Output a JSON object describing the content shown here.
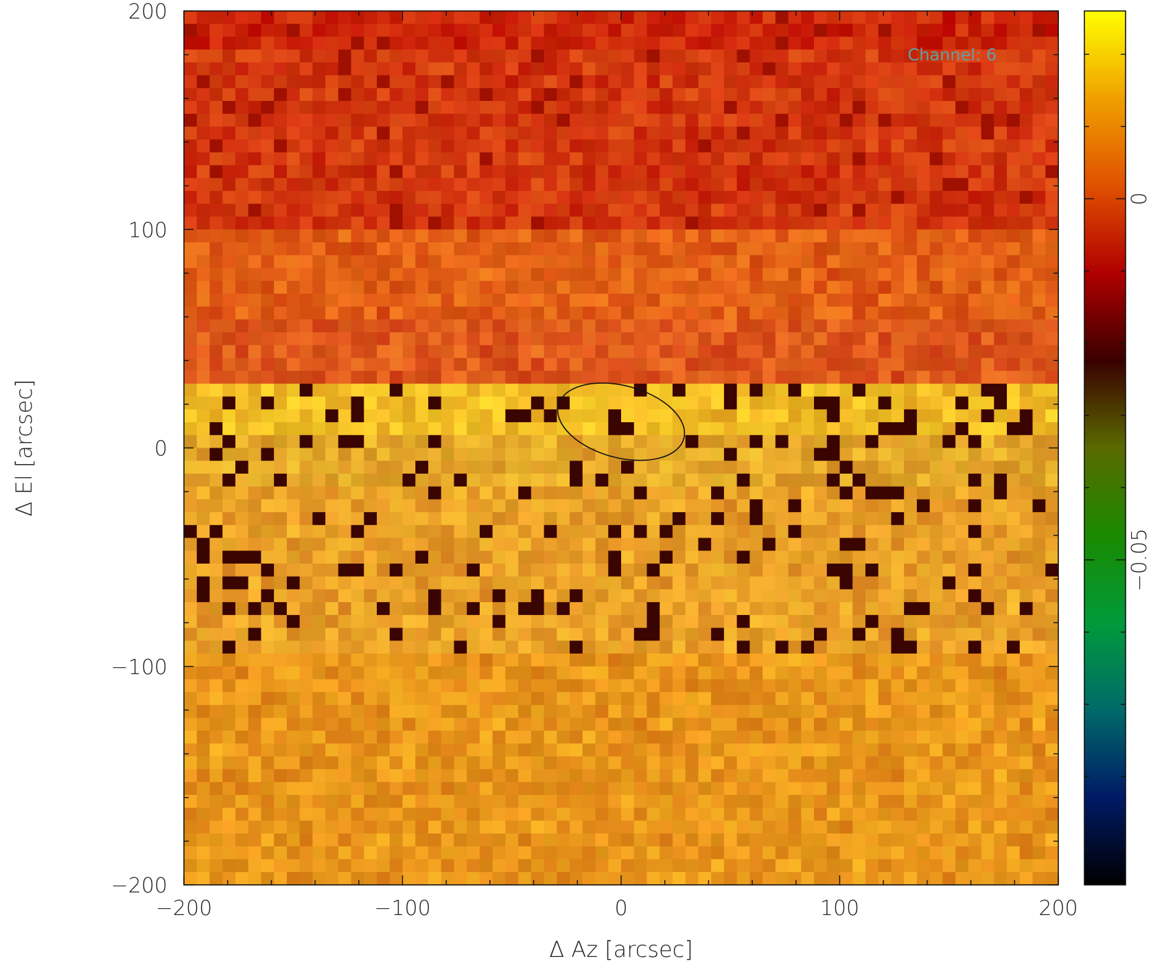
{
  "chart_data": {
    "type": "heatmap",
    "title": "",
    "xlabel": "Δ Az [arcsec]",
    "ylabel": "Δ El [arcsec]",
    "xlim": [
      -200,
      200
    ],
    "ylim": [
      -200,
      200
    ],
    "x_ticks": [
      -200,
      -100,
      0,
      100,
      200
    ],
    "x_tick_labels": [
      "−200",
      "−100",
      "0",
      "100",
      "200"
    ],
    "y_ticks": [
      -200,
      -100,
      0,
      100,
      200
    ],
    "y_tick_labels": [
      "−200",
      "−100",
      "0",
      "100",
      "200"
    ],
    "annotation": "Channel: 6",
    "annotation_color": "#5fa0a8",
    "grid": false,
    "colorbar": {
      "position": "right",
      "range": [
        -0.095,
        0.026
      ],
      "ticks": [
        0,
        -0.05
      ],
      "tick_labels": [
        "0",
        "−0.05"
      ],
      "colormap": [
        "#000000",
        "#001a66",
        "#006a6a",
        "#009a3a",
        "#1a8a00",
        "#5a6a00",
        "#3a0000",
        "#b00000",
        "#e05000",
        "#f0a000",
        "#ffff00"
      ]
    },
    "grid_cells": 68,
    "bands": [
      {
        "el_range": [
          100,
          200
        ],
        "mean_value": -0.007,
        "description_color": "#d23a12"
      },
      {
        "el_range": [
          27,
          100
        ],
        "mean_value": 0.002,
        "description_color": "#e86a1a"
      },
      {
        "el_range": [
          -20,
          27
        ],
        "mean_value": 0.015,
        "description_color": "#f2c020"
      },
      {
        "el_range": [
          -95,
          -20
        ],
        "mean_value": 0.008,
        "description_color": "#e8a030"
      },
      {
        "el_range": [
          -200,
          -95
        ],
        "mean_value": 0.007,
        "description_color": "#e89a18"
      }
    ],
    "beam": {
      "center": [
        0,
        12
      ],
      "width_arcsec": 27,
      "height_arcsec": 15,
      "angle_deg": -15
    }
  }
}
